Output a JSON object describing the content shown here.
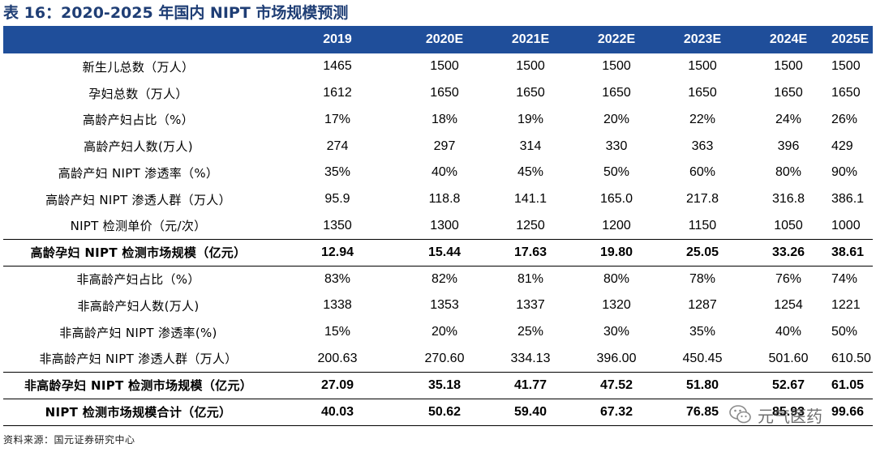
{
  "title": "表 16：2020-2025 年国内 NIPT 市场规模预测",
  "header": [
    "",
    "2019",
    "2020E",
    "2021E",
    "2022E",
    "2023E",
    "2024E",
    "2025E"
  ],
  "rows": [
    {
      "label": "新生儿总数（万人）",
      "values": [
        "1465",
        "1500",
        "1500",
        "1500",
        "1500",
        "1500",
        "1500"
      ]
    },
    {
      "label": "孕妇总数（万人）",
      "values": [
        "1612",
        "1650",
        "1650",
        "1650",
        "1650",
        "1650",
        "1650"
      ]
    },
    {
      "label": "高龄产妇占比（%）",
      "values": [
        "17%",
        "18%",
        "19%",
        "20%",
        "22%",
        "24%",
        "26%"
      ]
    },
    {
      "label": "高龄产妇人数(万人)",
      "values": [
        "274",
        "297",
        "314",
        "330",
        "363",
        "396",
        "429"
      ]
    },
    {
      "label": "高龄产妇 NIPT 渗透率（%）",
      "values": [
        "35%",
        "40%",
        "45%",
        "50%",
        "60%",
        "80%",
        "90%"
      ]
    },
    {
      "label": "高龄产妇 NIPT 渗透人群（万人）",
      "values": [
        "95.9",
        "118.8",
        "141.1",
        "165.0",
        "217.8",
        "316.8",
        "386.1"
      ]
    },
    {
      "label": "NIPT 检测单价（元/次）",
      "values": [
        "1350",
        "1300",
        "1250",
        "1200",
        "1150",
        "1050",
        "1000"
      ]
    },
    {
      "label": "高龄孕妇 NIPT 检测市场规模（亿元）",
      "values": [
        "12.94",
        "15.44",
        "17.63",
        "19.80",
        "25.05",
        "33.26",
        "38.61"
      ],
      "summary": true
    },
    {
      "label": "非高龄产妇占比（%）",
      "values": [
        "83%",
        "82%",
        "81%",
        "80%",
        "78%",
        "76%",
        "74%"
      ]
    },
    {
      "label": "非高龄产妇人数(万人)",
      "values": [
        "1338",
        "1353",
        "1337",
        "1320",
        "1287",
        "1254",
        "1221"
      ]
    },
    {
      "label": "非高龄产妇 NIPT 渗透率(%)",
      "values": [
        "15%",
        "20%",
        "25%",
        "30%",
        "35%",
        "40%",
        "50%"
      ]
    },
    {
      "label": "非高龄产妇 NIPT 渗透人群（万人）",
      "values": [
        "200.63",
        "270.60",
        "334.13",
        "396.00",
        "450.45",
        "501.60",
        "610.50"
      ]
    },
    {
      "label": "非高龄孕妇 NIPT 检测市场规模（亿元）",
      "values": [
        "27.09",
        "35.18",
        "41.77",
        "47.52",
        "51.80",
        "52.67",
        "61.05"
      ],
      "summary": true
    },
    {
      "label": "NIPT 检测市场规模合计（亿元）",
      "values": [
        "40.03",
        "50.62",
        "59.40",
        "67.32",
        "76.85",
        "85.93",
        "99.66"
      ],
      "summary": true
    }
  ],
  "source": "资料来源：国元证券研究中心",
  "watermark": "元气医药",
  "colors": {
    "header_bg": "#1f4e9a",
    "title": "#1f3e75"
  }
}
